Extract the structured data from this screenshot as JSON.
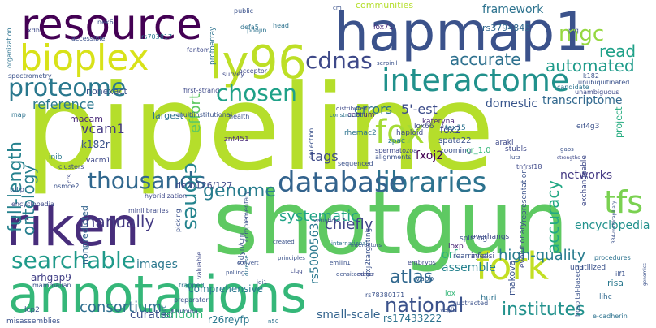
{
  "words": [
    {
      "text": "pipeline",
      "color": "#b5de2b"
    },
    {
      "text": "shotgun",
      "color": "#5ec962"
    },
    {
      "text": "annotations",
      "color": "#35b779"
    },
    {
      "text": "hapmap1",
      "color": "#3b528b"
    },
    {
      "text": "resource",
      "color": "#440154"
    },
    {
      "text": "riken",
      "color": "#472d7b"
    },
    {
      "text": "ly96",
      "color": "#bddf26"
    },
    {
      "text": "bioplex",
      "color": "#d8e219"
    },
    {
      "text": "interactome",
      "color": "#21918c"
    },
    {
      "text": "fork",
      "color": "#c2df23"
    },
    {
      "text": "libraries",
      "color": "#2c728e"
    },
    {
      "text": "database",
      "color": "#33638d"
    },
    {
      "text": "proteome",
      "color": "#2a788e"
    },
    {
      "text": "chosen",
      "color": "#1fa188"
    },
    {
      "text": "thousands",
      "color": "#31688e"
    },
    {
      "text": "cdnas",
      "color": "#3e4989"
    },
    {
      "text": "fox",
      "color": "#a5db36"
    },
    {
      "text": "tfs",
      "color": "#7ad151"
    },
    {
      "text": "searchable",
      "color": "#1f9a8a"
    },
    {
      "text": "clones",
      "color": "#25848e"
    },
    {
      "text": "full-length",
      "color": "#26828e"
    },
    {
      "text": "ontology",
      "color": "#277f8e"
    },
    {
      "text": "genome",
      "color": "#287d8e"
    },
    {
      "text": "manually",
      "color": "#443a83"
    },
    {
      "text": "national",
      "color": "#3b528b"
    },
    {
      "text": "institutes",
      "color": "#21918c"
    },
    {
      "text": "atlas",
      "color": "#31688e"
    },
    {
      "text": "automated",
      "color": "#1e9b8a"
    },
    {
      "text": "accurate",
      "color": "#2d708e"
    },
    {
      "text": "mgc",
      "color": "#95d840"
    },
    {
      "text": "read",
      "color": "#1fa188"
    },
    {
      "text": "project",
      "color": "#27ad81"
    },
    {
      "text": "accuracy",
      "color": "#22a884"
    },
    {
      "text": "effort",
      "color": "#5ec962"
    },
    {
      "text": "high-quality",
      "color": "#287c8e"
    },
    {
      "text": "consortium",
      "color": "#2e6e8e"
    },
    {
      "text": "tags",
      "color": "#3e4a89"
    },
    {
      "text": "systematic",
      "color": "#20a386"
    },
    {
      "text": "chiefly",
      "color": "#404688"
    },
    {
      "text": "vcam1",
      "color": "#443983"
    },
    {
      "text": "errors",
      "color": "#2d718e"
    },
    {
      "text": "5'-est",
      "color": "#3d4d8a"
    },
    {
      "text": "reference",
      "color": "#2a778e"
    },
    {
      "text": "framework",
      "color": "#2c728e"
    },
    {
      "text": "communities",
      "color": "#b5de2b"
    },
    {
      "text": "domestic",
      "color": "#39568c"
    },
    {
      "text": "transcriptome",
      "color": "#31688e"
    },
    {
      "text": "networks",
      "color": "#443983"
    },
    {
      "text": "encyclopedia",
      "color": "#21918c"
    },
    {
      "text": "images",
      "color": "#2a788e"
    },
    {
      "text": "orf",
      "color": "#29af7f"
    },
    {
      "text": "assemble",
      "color": "#26828e"
    },
    {
      "text": "comprehensive",
      "color": "#2a788e"
    },
    {
      "text": "small-scale",
      "color": "#33638d"
    },
    {
      "text": "curated",
      "color": "#3c4f8a"
    },
    {
      "text": "random",
      "color": "#35b779"
    },
    {
      "text": "rs5000563",
      "color": "#2a788e"
    },
    {
      "text": "fxoj2",
      "color": "#440154"
    },
    {
      "text": "arhgap9",
      "color": "#424086"
    },
    {
      "text": "k182r",
      "color": "#3b528b"
    },
    {
      "text": "fox2",
      "color": "#3e4989"
    },
    {
      "text": "nonexact",
      "color": "#3b528b"
    },
    {
      "text": "macam",
      "color": "#482878"
    },
    {
      "text": "largest",
      "color": "#2c728e"
    },
    {
      "text": "defb126/127",
      "color": "#3e4989"
    },
    {
      "text": "nonpredicted",
      "color": "#33638d"
    },
    {
      "text": "r26reyfp",
      "color": "#2a788e"
    },
    {
      "text": "rs17433222",
      "color": "#2c728e"
    },
    {
      "text": "rs3794845",
      "color": "#31688e"
    },
    {
      "text": "rs703817",
      "color": "#2a788e"
    },
    {
      "text": "huri",
      "color": "#2c728e"
    },
    {
      "text": "makova",
      "color": "#3b528b"
    },
    {
      "text": "vapb",
      "color": "#33638d"
    },
    {
      "text": "lox",
      "color": "#35b779"
    },
    {
      "text": "risa",
      "color": "#2a788e"
    },
    {
      "text": "lihc",
      "color": "#31688e"
    },
    {
      "text": "loxp",
      "color": "#482475"
    },
    {
      "text": "splicing",
      "color": "#3b528b"
    },
    {
      "text": "rearrayed",
      "color": "#3b528b"
    },
    {
      "text": "infls-si",
      "color": "#3e4989"
    },
    {
      "text": "overhangs",
      "color": "#3e4989"
    },
    {
      "text": "spata22",
      "color": "#3b528b"
    },
    {
      "text": "araki",
      "color": "#3e4989"
    },
    {
      "text": "tex15",
      "color": "#2c728e"
    },
    {
      "text": "zooming",
      "color": "#3b528b"
    },
    {
      "text": "haploid",
      "color": "#3e4989"
    },
    {
      "text": "kateryna",
      "color": "#482878"
    },
    {
      "text": "rhemac2",
      "color": "#2c728e"
    },
    {
      "text": "zpac",
      "color": "#2a788e"
    },
    {
      "text": "ccorum",
      "color": "#482878"
    },
    {
      "text": "znf451",
      "color": "#482878"
    },
    {
      "text": "inib",
      "color": "#2a788e"
    },
    {
      "text": "clusters",
      "color": "#3e4989"
    },
    {
      "text": "nsmce2",
      "color": "#3b528b"
    },
    {
      "text": "vacm1",
      "color": "#3e4989"
    },
    {
      "text": "lox71",
      "color": "#482878"
    },
    {
      "text": "lox66",
      "color": "#3e4989"
    },
    {
      "text": "eif4g3",
      "color": "#3b528b"
    },
    {
      "text": "stubls",
      "color": "#3e4989"
    },
    {
      "text": "minilibraries",
      "color": "#3e4989"
    },
    {
      "text": "hybridization",
      "color": "#3e4989"
    },
    {
      "text": "trapped",
      "color": "#2c728e"
    },
    {
      "text": "preparator",
      "color": "#3b528b"
    },
    {
      "text": "unutilized",
      "color": "#3b528b"
    },
    {
      "text": "procedures",
      "color": "#2c728e"
    },
    {
      "text": "exchangeable",
      "color": "#3e4989"
    },
    {
      "text": "multiinstitutional",
      "color": "#3b528b"
    },
    {
      "text": "first-strand",
      "color": "#3e4989"
    },
    {
      "text": "acceptor",
      "color": "#3e4989"
    },
    {
      "text": "survey",
      "color": "#3e4989"
    },
    {
      "text": "candidate",
      "color": "#2c728e"
    },
    {
      "text": "unambiguous",
      "color": "#3e4989"
    },
    {
      "text": "unubiquitinated",
      "color": "#3b528b"
    },
    {
      "text": "k182",
      "color": "#3b528b"
    },
    {
      "text": "protoarray",
      "color": "#2c728e"
    },
    {
      "text": "public",
      "color": "#3b528b"
    },
    {
      "text": "head",
      "color": "#2c728e"
    },
    {
      "text": "defa5",
      "color": "#2c728e"
    },
    {
      "text": "poojin",
      "color": "#2c728e"
    },
    {
      "text": "fantom",
      "color": "#3e4989"
    },
    {
      "text": "accessible",
      "color": "#3b528b"
    },
    {
      "text": "xdh",
      "color": "#3e4989"
    },
    {
      "text": "nek6",
      "color": "#3b528b"
    },
    {
      "text": "spectrometry",
      "color": "#3b528b"
    },
    {
      "text": "organization",
      "color": "#2c728e"
    },
    {
      "text": "tulip",
      "color": "#3b528b"
    },
    {
      "text": "map",
      "color": "#2c728e"
    },
    {
      "text": "mammalian",
      "color": "#3b528b"
    },
    {
      "text": "encyclopedia",
      "color": "#3e4989"
    },
    {
      "text": "health",
      "color": "#3b528b"
    },
    {
      "text": "collection",
      "color": "#3b528b"
    },
    {
      "text": "constructed",
      "color": "#2c728e"
    },
    {
      "text": "complementary",
      "color": "#3b528b"
    },
    {
      "text": "sequenced",
      "color": "#3b528b"
    },
    {
      "text": "distributed",
      "color": "#3e4989"
    },
    {
      "text": "serpinil",
      "color": "#3b528b"
    },
    {
      "text": "alignments",
      "color": "#3b528b"
    },
    {
      "text": "spermatozoa",
      "color": "#3e4989"
    },
    {
      "text": "cr_1.0",
      "color": "#35b779"
    },
    {
      "text": "representation",
      "color": "#3b528b"
    },
    {
      "text": "evolutionary",
      "color": "#3e4989"
    },
    {
      "text": "384-multicapillary",
      "color": "#3b528b"
    },
    {
      "text": "variation",
      "color": "#3b528b"
    },
    {
      "text": "international",
      "color": "#2c728e"
    },
    {
      "text": "interactors",
      "color": "#3b528b"
    },
    {
      "text": "created",
      "color": "#3b528b"
    },
    {
      "text": "principles",
      "color": "#3b528b"
    },
    {
      "text": "diverse",
      "color": "#2c728e"
    },
    {
      "text": "emilin1",
      "color": "#3b528b"
    },
    {
      "text": "clqg",
      "color": "#3e4989"
    },
    {
      "text": "idi1",
      "color": "#3b528b"
    },
    {
      "text": "densitometer",
      "color": "#3b528b"
    },
    {
      "text": "embryos",
      "color": "#3e4989"
    },
    {
      "text": "subtracted",
      "color": "#3b528b"
    },
    {
      "text": "hospital-based",
      "color": "#3b528b"
    },
    {
      "text": "e-cadherin",
      "color": "#2c728e"
    },
    {
      "text": "valuable",
      "color": "#3e4989"
    },
    {
      "text": "illumina",
      "color": "#3b528b"
    },
    {
      "text": "polling",
      "color": "#3b528b"
    },
    {
      "text": "convert",
      "color": "#3b528b"
    },
    {
      "text": "misassemblies",
      "color": "#3b528b"
    },
    {
      "text": "lcp2",
      "color": "#3b528b"
    },
    {
      "text": "pilot",
      "color": "#2c728e"
    },
    {
      "text": "vegfb",
      "color": "#3b528b"
    },
    {
      "text": "n50",
      "color": "#2c728e"
    },
    {
      "text": "cdnas",
      "color": "#3e4989"
    },
    {
      "text": "ilf1",
      "color": "#3b528b"
    },
    {
      "text": "cld",
      "color": "#3b528b"
    },
    {
      "text": "lutz",
      "color": "#3b528b"
    },
    {
      "text": "gaps",
      "color": "#3b528b"
    },
    {
      "text": "strengths",
      "color": "#3e4989"
    },
    {
      "text": "tnfrsf18",
      "color": "#3e4989"
    },
    {
      "text": "picking",
      "color": "#3b528b"
    },
    {
      "text": "rs78380171",
      "color": "#3b528b"
    },
    {
      "text": "foxj2targeting",
      "color": "#3b528b"
    },
    {
      "text": "5dyn/cm",
      "color": "#3b528b"
    },
    {
      "text": "genomics",
      "color": "#3b528b"
    },
    {
      "text": "crs",
      "color": "#3e4989"
    },
    {
      "text": "p/q",
      "color": "#3b528b"
    },
    {
      "text": "cm",
      "color": "#3b528b"
    }
  ]
}
